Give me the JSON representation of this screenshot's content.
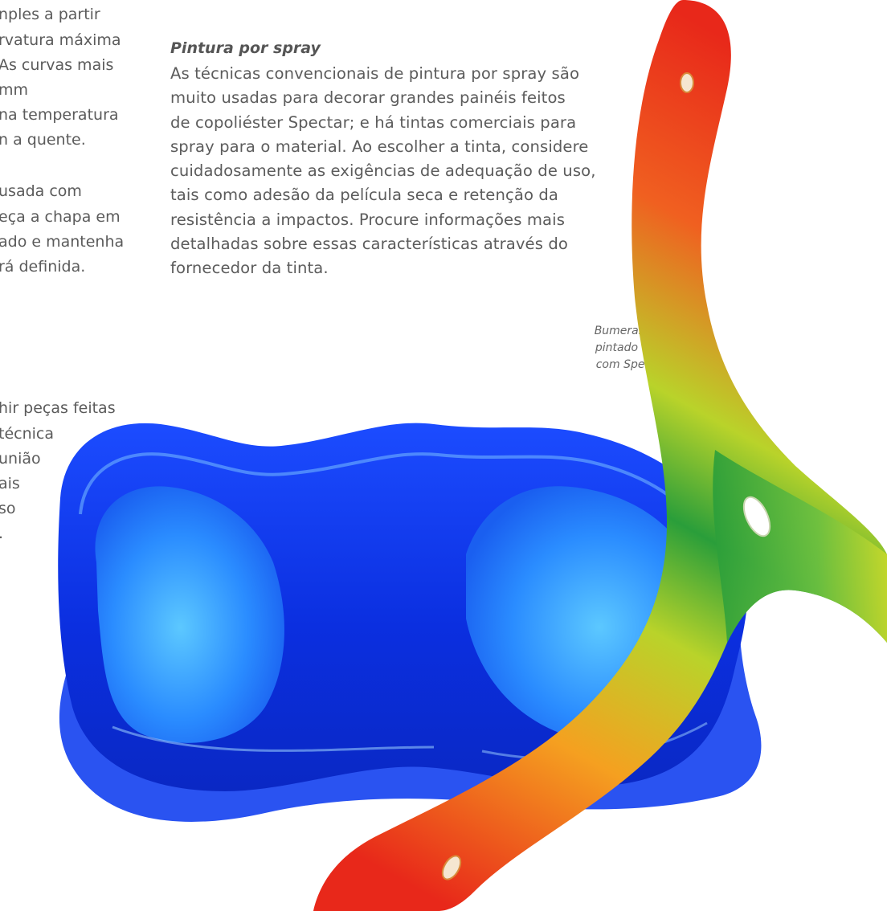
{
  "left_column": {
    "lines": [
      "nples a partir",
      "rvatura máxima",
      "As curvas mais",
      "mm",
      "na temperatura",
      "n a quente.",
      "usada com",
      "eça a chapa em",
      "ado e mantenha",
      "rá definida.",
      "hir peças feitas",
      "técnica",
      "união",
      "ais",
      "so",
      "."
    ]
  },
  "section": {
    "heading": "Pintura por spray",
    "body_lines": [
      "As técnicas convencionais de pintura por spray são",
      "muito usadas para decorar grandes painéis feitos",
      "de copoliéster Spectar; e há tintas comerciais para",
      "spray para o material. Ao escolher a tinta, considere",
      "cuidadosamente as exigências de adequação de uso,",
      "tais como adesão da película seca e retenção da",
      "resistência a impactos. Procure informações mais",
      "detalhadas sobre essas características através do",
      "fornecedor da tinta."
    ]
  },
  "caption": {
    "lines": [
      "Bumerangue",
      "pintado feito",
      "com Spectar"
    ]
  },
  "images": [
    {
      "name": "blue-bowl-photo",
      "colors": [
        "#0a2fd6",
        "#1a5cff",
        "#4aa8ff"
      ]
    },
    {
      "name": "boomerang-photo",
      "colors": [
        "#e8281a",
        "#f5a623",
        "#c8d92b",
        "#1f9a3a"
      ]
    }
  ]
}
